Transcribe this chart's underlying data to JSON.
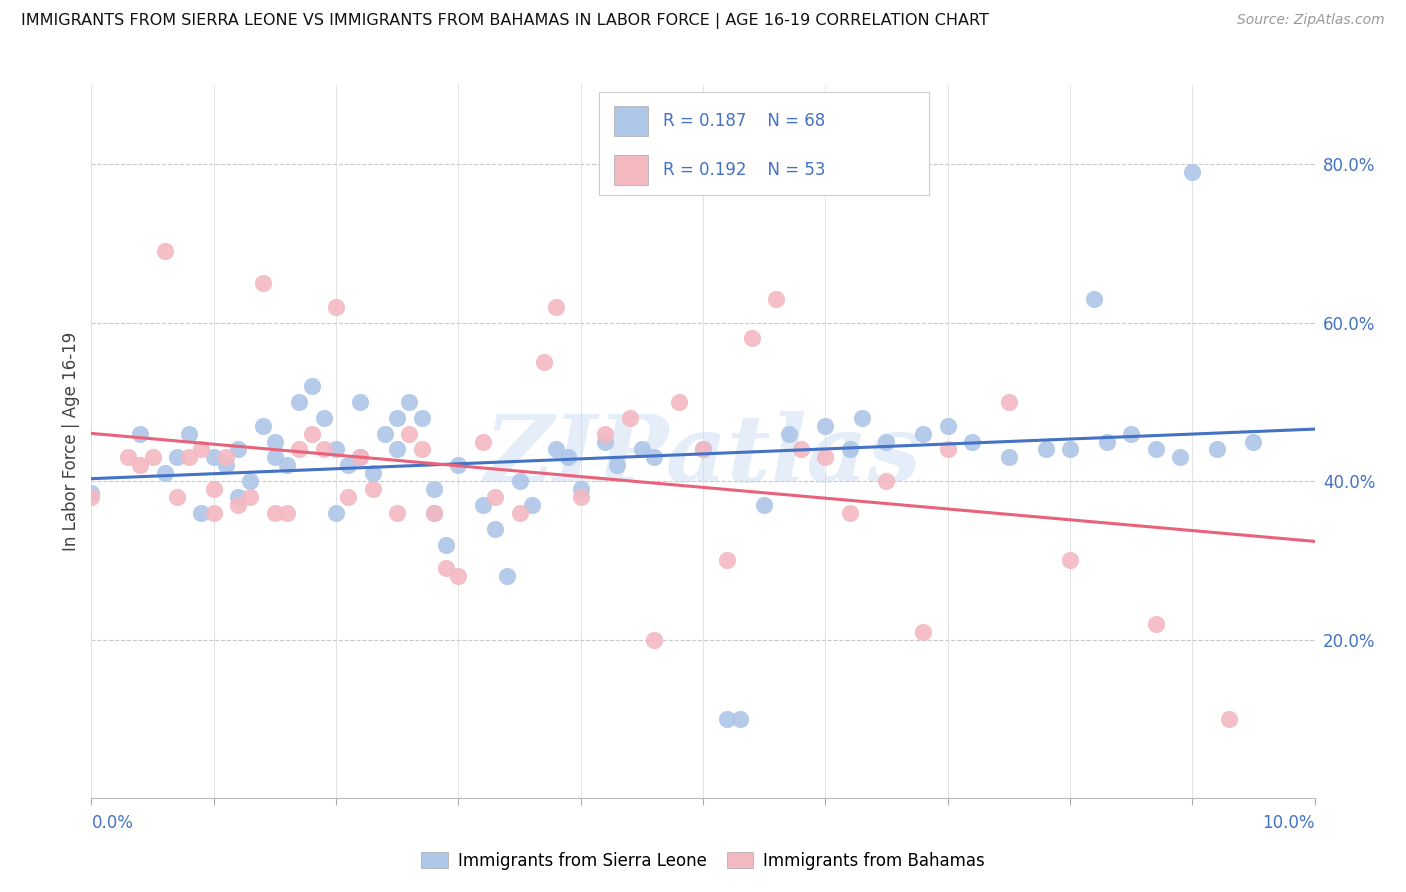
{
  "title": "IMMIGRANTS FROM SIERRA LEONE VS IMMIGRANTS FROM BAHAMAS IN LABOR FORCE | AGE 16-19 CORRELATION CHART",
  "source": "Source: ZipAtlas.com",
  "ylabel": "In Labor Force | Age 16-19",
  "yaxis_values": [
    0.2,
    0.4,
    0.6,
    0.8
  ],
  "xlim": [
    0.0,
    0.1
  ],
  "ylim": [
    0.0,
    0.9
  ],
  "sierra_leone_color": "#aec6e8",
  "bahamas_color": "#f4b8c1",
  "sierra_leone_edge": "#7aafd4",
  "bahamas_edge": "#e890a0",
  "sierra_leone_line_color": "#4472c4",
  "bahamas_line_color": "#e8637a",
  "sierra_leone_R": "0.187",
  "sierra_leone_N": "68",
  "bahamas_R": "0.192",
  "bahamas_N": "53",
  "legend_label_sierra": "Immigrants from Sierra Leone",
  "legend_label_bahamas": "Immigrants from Bahamas",
  "watermark": "ZIPatlas",
  "label_color": "#4472c4",
  "grid_color_h": "#c8c8c8",
  "grid_color_v": "#d8d8d8",
  "title_fontsize": 11.5,
  "source_fontsize": 10,
  "axis_label_fontsize": 12,
  "tick_label_fontsize": 12,
  "legend_fontsize": 12,
  "scatter_size": 140,
  "sierra_leone_x": [
    0.0,
    0.004,
    0.006,
    0.007,
    0.008,
    0.009,
    0.01,
    0.011,
    0.012,
    0.012,
    0.013,
    0.014,
    0.015,
    0.015,
    0.016,
    0.017,
    0.018,
    0.019,
    0.02,
    0.02,
    0.021,
    0.022,
    0.022,
    0.023,
    0.024,
    0.025,
    0.025,
    0.026,
    0.027,
    0.028,
    0.028,
    0.029,
    0.03,
    0.032,
    0.033,
    0.034,
    0.035,
    0.036,
    0.038,
    0.039,
    0.04,
    0.042,
    0.043,
    0.045,
    0.046,
    0.05,
    0.052,
    0.053,
    0.055,
    0.057,
    0.06,
    0.062,
    0.063,
    0.065,
    0.068,
    0.07,
    0.072,
    0.075,
    0.078,
    0.08,
    0.082,
    0.083,
    0.085,
    0.087,
    0.089,
    0.09,
    0.092,
    0.095
  ],
  "sierra_leone_y": [
    0.385,
    0.46,
    0.41,
    0.43,
    0.46,
    0.36,
    0.43,
    0.42,
    0.44,
    0.38,
    0.4,
    0.47,
    0.43,
    0.45,
    0.42,
    0.5,
    0.52,
    0.48,
    0.44,
    0.36,
    0.42,
    0.5,
    0.43,
    0.41,
    0.46,
    0.44,
    0.48,
    0.5,
    0.48,
    0.39,
    0.36,
    0.32,
    0.42,
    0.37,
    0.34,
    0.28,
    0.4,
    0.37,
    0.44,
    0.43,
    0.39,
    0.45,
    0.42,
    0.44,
    0.43,
    0.44,
    0.1,
    0.1,
    0.37,
    0.46,
    0.47,
    0.44,
    0.48,
    0.45,
    0.46,
    0.47,
    0.45,
    0.43,
    0.44,
    0.44,
    0.63,
    0.45,
    0.46,
    0.44,
    0.43,
    0.79,
    0.44,
    0.45
  ],
  "bahamas_x": [
    0.0,
    0.003,
    0.004,
    0.005,
    0.006,
    0.007,
    0.008,
    0.009,
    0.01,
    0.01,
    0.011,
    0.012,
    0.013,
    0.014,
    0.015,
    0.016,
    0.017,
    0.018,
    0.019,
    0.02,
    0.021,
    0.022,
    0.023,
    0.025,
    0.026,
    0.027,
    0.028,
    0.029,
    0.03,
    0.032,
    0.033,
    0.035,
    0.037,
    0.038,
    0.04,
    0.042,
    0.044,
    0.046,
    0.048,
    0.05,
    0.052,
    0.054,
    0.056,
    0.058,
    0.06,
    0.062,
    0.065,
    0.068,
    0.07,
    0.075,
    0.08,
    0.087,
    0.093
  ],
  "bahamas_y": [
    0.38,
    0.43,
    0.42,
    0.43,
    0.69,
    0.38,
    0.43,
    0.44,
    0.36,
    0.39,
    0.43,
    0.37,
    0.38,
    0.65,
    0.36,
    0.36,
    0.44,
    0.46,
    0.44,
    0.62,
    0.38,
    0.43,
    0.39,
    0.36,
    0.46,
    0.44,
    0.36,
    0.29,
    0.28,
    0.45,
    0.38,
    0.36,
    0.55,
    0.62,
    0.38,
    0.46,
    0.48,
    0.2,
    0.5,
    0.44,
    0.3,
    0.58,
    0.63,
    0.44,
    0.43,
    0.36,
    0.4,
    0.21,
    0.44,
    0.5,
    0.3,
    0.22,
    0.1
  ]
}
